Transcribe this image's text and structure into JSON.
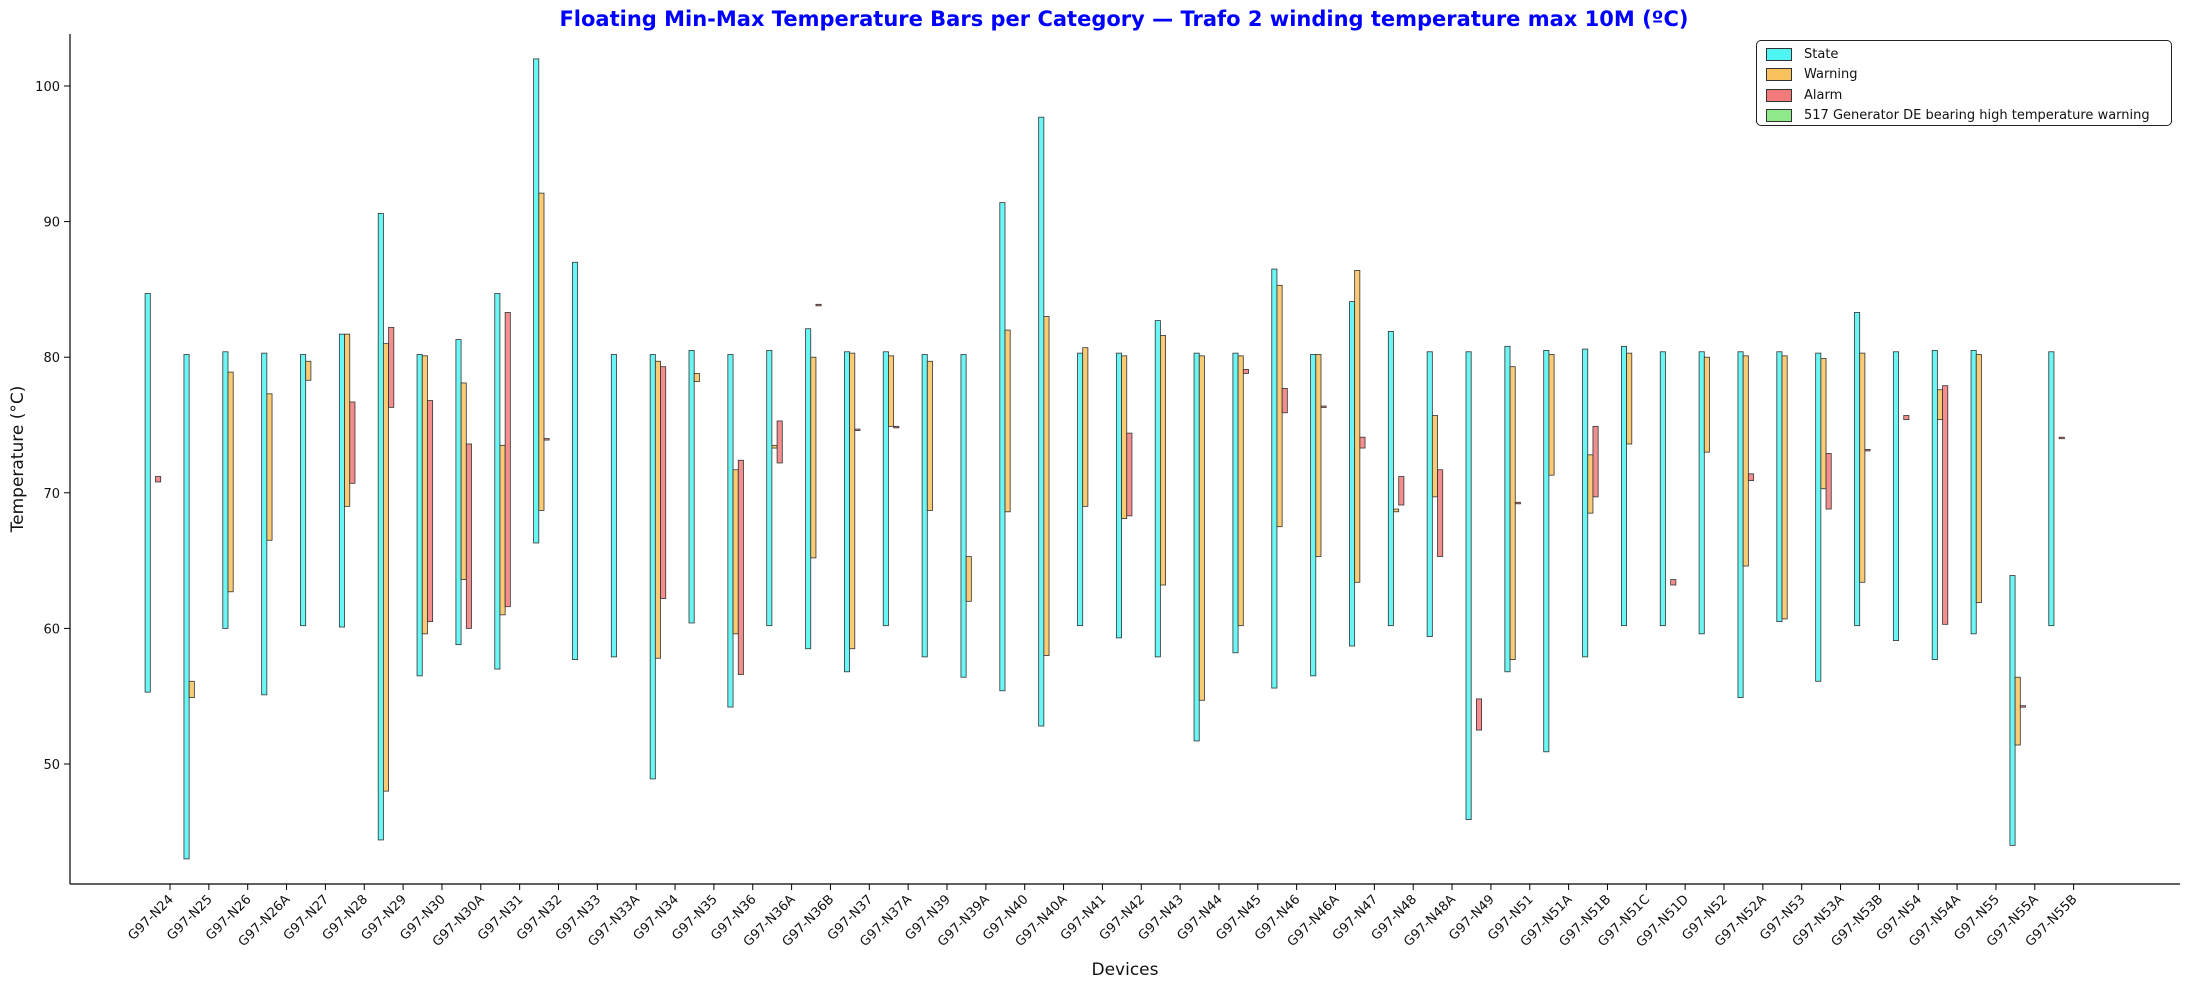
{
  "colors": {
    "State": "#4ff5f2",
    "Warning": "#f9c25c",
    "Alarm": "#f27a7a",
    "517 Generator DE bearing high temperature warning": "#8fe88a",
    "title": "#0000ff",
    "edge": "#222222"
  },
  "chart_data": {
    "type": "bar",
    "subtype": "floating-range",
    "title": "Floating Min-Max Temperature Bars per Category — Trafo 2 winding temperature max 10M (ºC)",
    "xlabel": "Devices",
    "ylabel": "Temperature (°C)",
    "ylim": [
      41,
      104
    ],
    "yticks": [
      50,
      60,
      70,
      80,
      90,
      100
    ],
    "legend_position": "top-right",
    "grid": false,
    "categories": [
      "G97-N24",
      "G97-N25",
      "G97-N26",
      "G97-N26A",
      "G97-N27",
      "G97-N28",
      "G97-N29",
      "G97-N30",
      "G97-N30A",
      "G97-N31",
      "G97-N32",
      "G97-N33",
      "G97-N33A",
      "G97-N34",
      "G97-N35",
      "G97-N36",
      "G97-N36A",
      "G97-N36B",
      "G97-N37",
      "G97-N37A",
      "G97-N39",
      "G97-N39A",
      "G97-N40",
      "G97-N40A",
      "G97-N41",
      "G97-N42",
      "G97-N43",
      "G97-N44",
      "G97-N45",
      "G97-N46",
      "G97-N46A",
      "G97-N47",
      "G97-N48",
      "G97-N48A",
      "G97-N49",
      "G97-N51",
      "G97-N51A",
      "G97-N51B",
      "G97-N51C",
      "G97-N51D",
      "G97-N52",
      "G97-N52A",
      "G97-N53",
      "G97-N53A",
      "G97-N53B",
      "G97-N54",
      "G97-N54A",
      "G97-N55",
      "G97-N55A",
      "G97-N55B"
    ],
    "series": [
      {
        "name": "State",
        "ranges": [
          [
            55.3,
            84.7
          ],
          [
            43.0,
            80.2
          ],
          [
            60.0,
            80.4
          ],
          [
            55.1,
            80.3
          ],
          [
            60.2,
            80.2
          ],
          [
            60.1,
            81.7
          ],
          [
            44.4,
            90.6
          ],
          [
            56.5,
            80.2
          ],
          [
            58.8,
            81.3
          ],
          [
            57.0,
            84.7
          ],
          [
            66.3,
            102.0
          ],
          [
            57.7,
            87.0
          ],
          [
            57.9,
            80.2
          ],
          [
            48.9,
            80.2
          ],
          [
            60.4,
            80.5
          ],
          [
            54.2,
            80.2
          ],
          [
            60.2,
            80.5
          ],
          [
            58.5,
            82.1
          ],
          [
            56.8,
            80.4
          ],
          [
            60.2,
            80.4
          ],
          [
            57.9,
            80.2
          ],
          [
            56.4,
            80.2
          ],
          [
            55.4,
            91.4
          ],
          [
            52.8,
            97.7
          ],
          [
            60.2,
            80.3
          ],
          [
            59.3,
            80.3
          ],
          [
            57.9,
            82.7
          ],
          [
            51.7,
            80.3
          ],
          [
            58.2,
            80.3
          ],
          [
            55.6,
            86.5
          ],
          [
            56.5,
            80.2
          ],
          [
            58.7,
            84.1
          ],
          [
            60.2,
            81.9
          ],
          [
            59.4,
            80.4
          ],
          [
            45.9,
            80.4
          ],
          [
            56.8,
            80.8
          ],
          [
            50.9,
            80.5
          ],
          [
            57.9,
            80.6
          ],
          [
            60.2,
            80.8
          ],
          [
            60.2,
            80.4
          ],
          [
            59.6,
            80.4
          ],
          [
            54.9,
            80.4
          ],
          [
            60.5,
            80.4
          ],
          [
            56.1,
            80.3
          ],
          [
            60.2,
            83.3
          ],
          [
            59.1,
            80.4
          ],
          [
            57.7,
            80.5
          ],
          [
            59.6,
            80.5
          ],
          [
            44.0,
            63.9
          ],
          [
            60.2,
            80.4
          ]
        ]
      },
      {
        "name": "Warning",
        "ranges": [
          null,
          [
            54.9,
            56.1
          ],
          [
            62.7,
            78.9
          ],
          [
            66.5,
            77.3
          ],
          [
            78.3,
            79.7
          ],
          [
            69.0,
            81.7
          ],
          [
            48.0,
            81.0
          ],
          [
            59.6,
            80.1
          ],
          [
            63.6,
            78.1
          ],
          [
            61.0,
            73.5
          ],
          [
            68.7,
            92.1
          ],
          null,
          null,
          [
            57.8,
            79.7
          ],
          [
            78.2,
            78.8
          ],
          [
            59.6,
            71.7
          ],
          [
            73.3,
            73.5
          ],
          [
            65.2,
            80.0
          ],
          [
            58.5,
            80.3
          ],
          [
            74.9,
            80.1
          ],
          [
            68.7,
            79.7
          ],
          [
            62.0,
            65.3
          ],
          [
            68.6,
            82.0
          ],
          [
            58.0,
            83.0
          ],
          [
            69.0,
            80.7
          ],
          [
            68.1,
            80.1
          ],
          [
            63.2,
            81.6
          ],
          [
            54.7,
            80.1
          ],
          [
            60.2,
            80.1
          ],
          [
            67.5,
            85.3
          ],
          [
            65.3,
            80.2
          ],
          [
            63.4,
            86.4
          ],
          [
            68.6,
            68.8
          ],
          [
            69.7,
            75.7
          ],
          null,
          [
            57.7,
            79.3
          ],
          [
            71.3,
            80.2
          ],
          [
            68.5,
            72.8
          ],
          [
            73.6,
            80.3
          ],
          null,
          [
            73.0,
            80.0
          ],
          [
            64.6,
            80.1
          ],
          [
            60.7,
            80.1
          ],
          [
            70.3,
            79.9
          ],
          [
            63.4,
            80.3
          ],
          null,
          [
            75.4,
            77.6
          ],
          [
            61.9,
            80.2
          ],
          [
            51.4,
            56.4
          ],
          null
        ]
      },
      {
        "name": "Alarm",
        "ranges": [
          [
            70.8,
            71.2
          ],
          null,
          null,
          null,
          null,
          [
            70.7,
            76.7
          ],
          [
            76.3,
            82.2
          ],
          [
            60.5,
            76.8
          ],
          [
            60.0,
            73.6
          ],
          [
            61.6,
            83.3
          ],
          [
            73.9,
            74.0
          ],
          null,
          null,
          [
            62.2,
            79.3
          ],
          null,
          [
            56.6,
            72.4
          ],
          [
            72.2,
            75.3
          ],
          [
            83.8,
            83.9
          ],
          [
            74.6,
            74.7
          ],
          [
            74.8,
            74.9
          ],
          null,
          null,
          null,
          null,
          null,
          [
            68.3,
            74.4
          ],
          null,
          null,
          [
            78.8,
            79.1
          ],
          [
            75.9,
            77.7
          ],
          [
            76.3,
            76.4
          ],
          [
            73.3,
            74.1
          ],
          [
            69.1,
            71.2
          ],
          [
            65.3,
            71.7
          ],
          [
            52.5,
            54.8
          ],
          [
            69.2,
            69.3
          ],
          null,
          [
            69.7,
            74.9
          ],
          null,
          [
            63.2,
            63.6
          ],
          null,
          [
            70.9,
            71.4
          ],
          null,
          [
            68.8,
            72.9
          ],
          [
            73.1,
            73.2
          ],
          [
            75.4,
            75.7
          ],
          [
            60.3,
            77.9
          ],
          null,
          [
            54.2,
            54.3
          ],
          [
            74.0,
            74.1
          ]
        ]
      },
      {
        "name": "517 Generator DE bearing high temperature warning",
        "ranges": []
      }
    ]
  }
}
